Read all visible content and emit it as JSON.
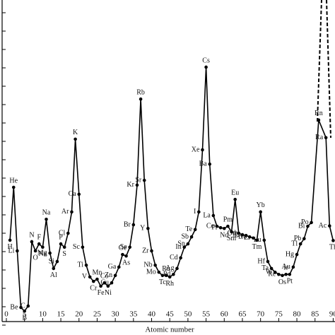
{
  "chart_data": {
    "type": "line",
    "x_label": "Atomic number",
    "x": [
      1,
      2,
      3,
      4,
      5,
      6,
      7,
      8,
      9,
      10,
      11,
      12,
      13,
      14,
      15,
      16,
      17,
      18,
      19,
      20,
      21,
      22,
      23,
      24,
      25,
      26,
      27,
      28,
      29,
      30,
      31,
      32,
      33,
      34,
      35,
      36,
      37,
      38,
      39,
      40,
      41,
      42,
      43,
      44,
      45,
      46,
      47,
      48,
      49,
      50,
      51,
      52,
      53,
      54,
      55,
      56,
      57,
      58,
      59,
      60,
      61,
      62,
      63,
      64,
      65,
      66,
      67,
      68,
      69,
      70,
      71,
      72,
      73,
      74,
      75,
      76,
      77,
      78,
      79,
      80,
      81,
      82,
      83,
      84,
      86,
      88,
      89,
      90
    ],
    "point_labels": [
      "H",
      "He",
      "Li",
      "Be",
      "B",
      "C",
      "N",
      "O",
      "F",
      "Ne",
      "Na",
      "Mg",
      "Al",
      "Si",
      "P",
      "S",
      "Cl",
      "Ar",
      "K",
      "Ca",
      "Sc",
      "Ti",
      "V",
      "Cr",
      "Mn",
      "Fe",
      "Co",
      "Ni",
      "Cu",
      "Zn",
      "Ga",
      "Ge",
      "As",
      "Se",
      "Br",
      "Kr",
      "Rb",
      "Sr",
      "Y",
      "Zr",
      "Nb",
      "Mo",
      "Tc",
      "Ru",
      "Rh",
      "Pd",
      "Ag",
      "Cd",
      "In",
      "Sn",
      "Sb",
      "Te",
      "I",
      "Xe",
      "Cs",
      "Ba",
      "La",
      "Ce",
      "Pr",
      "Nd",
      "Pm",
      "Sm",
      "Eu",
      "Gd",
      "Tb",
      "Dy",
      "Ho",
      "Er",
      "Tm",
      "Yb",
      "Lu",
      "Hf",
      "Ta",
      "W",
      "Re",
      "Os",
      "Ir",
      "Pt",
      "Au",
      "Hg",
      "Tl",
      "Pb",
      "Bi",
      "Po",
      "Rn",
      "Ra",
      "Ac",
      "Th"
    ],
    "values": [
      23.1,
      37.5,
      20.2,
      4.8,
      3.8,
      5.2,
      22.7,
      20.2,
      22.1,
      21.2,
      28.8,
      19.6,
      15.4,
      17.3,
      22.1,
      21.2,
      25,
      30.8,
      50.6,
      35.6,
      21.2,
      16.3,
      13.1,
      11.9,
      12.5,
      10.6,
      11.5,
      10.6,
      11.5,
      13.5,
      15.8,
      19.2,
      18.8,
      21.2,
      27.3,
      38.1,
      61.5,
      39.4,
      26.3,
      20.2,
      16.3,
      14.4,
      13.5,
      13.5,
      13.1,
      13.8,
      15.4,
      18.3,
      21.2,
      22.1,
      24,
      26,
      30.8,
      47.7,
      70.2,
      43.8,
      29.8,
      26.9,
      26.5,
      26.3,
      26.9,
      25.4,
      34.2,
      25,
      24.6,
      24.4,
      24,
      23.7,
      23.1,
      30.8,
      23.1,
      17.3,
      15.4,
      14.4,
      13.8,
      13.5,
      13.8,
      13.8,
      15.8,
      19.2,
      22.1,
      23.5,
      26.9,
      27.9,
      55.8,
      51,
      27,
      23
    ],
    "color": "#000000",
    "xlim": [
      -1.75,
      90.5
    ],
    "xticks": [
      0,
      5,
      10,
      15,
      20,
      25,
      30,
      35,
      40,
      45,
      50,
      55,
      60,
      65,
      70,
      75,
      80,
      85,
      90
    ],
    "ylim": [
      0,
      90
    ],
    "yticks": [
      0,
      5,
      10,
      15,
      20,
      25,
      30,
      35,
      40,
      45,
      50,
      55,
      60,
      65,
      70,
      75,
      80,
      85
    ]
  }
}
